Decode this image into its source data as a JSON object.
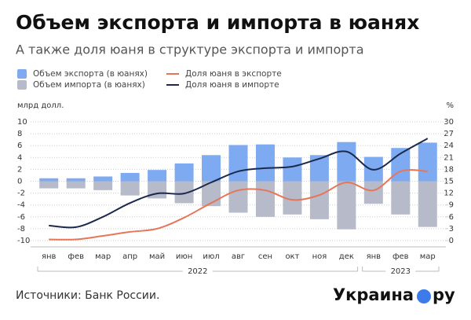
{
  "chart_data": {
    "type": "bar",
    "title": "Объем экспорта и импорта в юанях",
    "subtitle": "А также доля юаня в структуре экспорта и импорта",
    "y_label": "млрд долл.",
    "y2_label": "%",
    "categories": [
      "янв",
      "фев",
      "мар",
      "апр",
      "май",
      "июн",
      "июл",
      "авг",
      "сен",
      "окт",
      "ноя",
      "дек",
      "янв",
      "фев",
      "мар"
    ],
    "years": [
      "2022",
      "2023"
    ],
    "series": [
      {
        "name": "Объем экспорта (в юанях)",
        "color": "#7eaaf2",
        "values": [
          0.5,
          0.5,
          0.8,
          1.4,
          1.9,
          3.0,
          4.4,
          6.1,
          6.2,
          4.0,
          4.4,
          6.6,
          4.1,
          5.6,
          6.5
        ]
      },
      {
        "name": "Объем импорта (в юанях)",
        "color": "#b6bac9",
        "values": [
          -1.2,
          -1.2,
          -1.5,
          -2.4,
          -2.9,
          -3.7,
          -4.2,
          -5.3,
          -6.0,
          -5.6,
          -6.4,
          -8.1,
          -3.8,
          -5.6,
          -7.7
        ]
      },
      {
        "name": "Доля юаня в экспорте",
        "color": "#e6765a",
        "type": "line",
        "axis": "y2",
        "values": [
          0.3,
          0.3,
          1.2,
          2.2,
          3.0,
          5.8,
          9.5,
          12.7,
          12.7,
          10.3,
          11.5,
          14.7,
          12.7,
          17.5,
          17.5
        ]
      },
      {
        "name": "Доля юаня в импорте",
        "color": "#1b2a4c",
        "type": "line",
        "axis": "y2",
        "values": [
          3.8,
          3.4,
          6.0,
          9.5,
          11.9,
          11.9,
          14.7,
          17.5,
          18.3,
          18.7,
          20.7,
          22.5,
          17.9,
          22.0,
          25.8
        ]
      }
    ],
    "ylim": [
      -10,
      10
    ],
    "yticks": [
      -10,
      -8,
      -6,
      -4,
      -2,
      0,
      2,
      4,
      6,
      8,
      10
    ],
    "y2lim": [
      0,
      30
    ],
    "y2ticks": [
      0,
      3,
      6,
      9,
      12,
      15,
      18,
      21,
      24,
      27,
      30
    ],
    "grid": true
  },
  "footer": {
    "source": "Источники: Банк России.",
    "logo": [
      "Украина",
      "ру"
    ]
  }
}
